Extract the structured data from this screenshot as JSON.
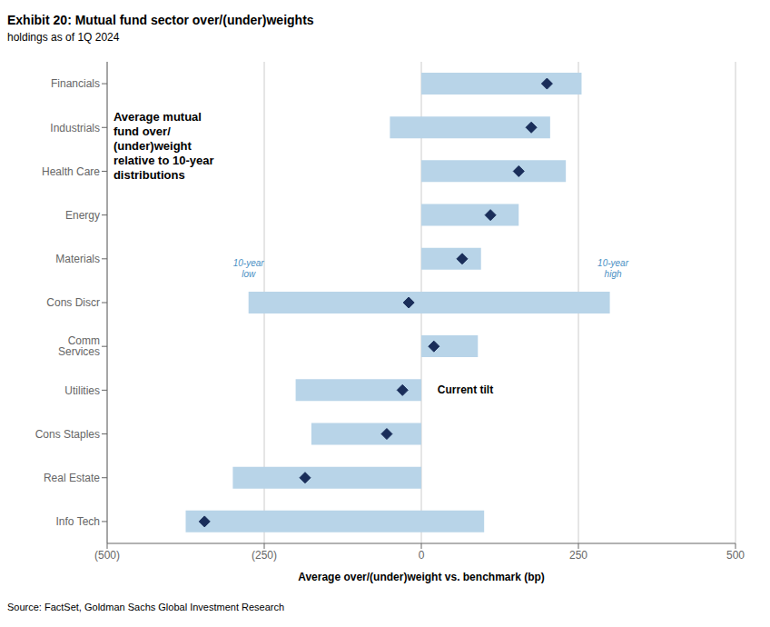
{
  "chart_data": {
    "type": "bar",
    "orientation": "horizontal",
    "title": "Exhibit 20: Mutual fund sector over/(under)weights",
    "subtitle": "holdings as of 1Q 2024",
    "source": "Source: FactSet, Goldman Sachs Global Investment Research",
    "xlabel": "Average over/(under)weight vs. benchmark (bp)",
    "categories": [
      "Financials",
      "Industrials",
      "Health Care",
      "Energy",
      "Materials",
      "Cons Discr",
      "Comm Services",
      "Utilities",
      "Cons Staples",
      "Real Estate",
      "Info Tech"
    ],
    "series": [
      {
        "type": "bar",
        "color": "#b8d4e8",
        "low": [
          0,
          -50,
          0,
          0,
          0,
          -275,
          0,
          -200,
          -175,
          -300,
          -375
        ],
        "high": [
          255,
          205,
          230,
          155,
          95,
          300,
          90,
          0,
          0,
          0,
          100
        ]
      },
      {
        "type": "scatter",
        "marker": "diamond",
        "color": "#1a2e5a",
        "values": [
          200,
          175,
          155,
          110,
          65,
          -20,
          20,
          -30,
          -55,
          -185,
          -345
        ]
      }
    ],
    "xlim": [
      -500,
      500
    ],
    "xticks": [
      {
        "value": -500,
        "label": "(500)"
      },
      {
        "value": -250,
        "label": "(250)"
      },
      0,
      250,
      500
    ],
    "grid": true,
    "annotations": [
      {
        "text": "Average mutual\nfund over/\n(under)weight\nrelative to 10-year\ndistributions",
        "x": -490,
        "category": "Financials"
      },
      {
        "text": "10-year\nlow",
        "x": -275,
        "category": "Cons Discr",
        "color": "#4a90c4"
      },
      {
        "text": "10-year\nhigh",
        "x": 305,
        "category": "Cons Discr",
        "color": "#4a90c4"
      },
      {
        "text": "Current tilt",
        "x": 20,
        "category": "Utilities"
      }
    ]
  }
}
